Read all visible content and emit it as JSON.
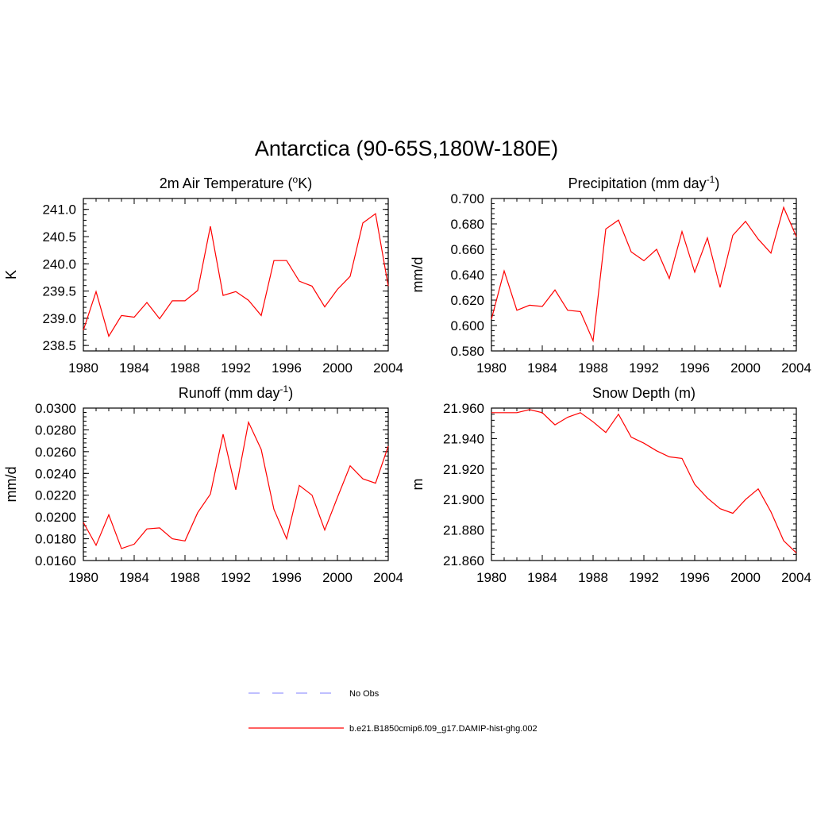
{
  "figure": {
    "title": "Antarctica (90-65S,180W-180E)"
  },
  "legend": {
    "entries": [
      {
        "label": "No Obs",
        "color": "#9999ff",
        "dash": true
      },
      {
        "label": "b.e21.B1850cmip6.f09_g17.DAMIP-hist-ghg.002",
        "color": "#ff0000",
        "dash": false
      }
    ]
  },
  "chart_data": [
    {
      "type": "line",
      "title": "2m Air Temperature (°K)",
      "title_main": "2m Air Temperature (",
      "title_sup": "o",
      "title_end": "K)",
      "ylabel": "K",
      "xlim": [
        1980,
        2004
      ],
      "ylim": [
        238.4,
        241.2
      ],
      "xticks": [
        1980,
        1984,
        1988,
        1992,
        1996,
        2000,
        2004
      ],
      "yticks": [
        238.5,
        239.0,
        239.5,
        240.0,
        240.5,
        241.0
      ],
      "ytick_labels": [
        "238.5",
        "239.0",
        "239.5",
        "240.0",
        "240.5",
        "241.0"
      ],
      "series": [
        {
          "color": "#ff0000",
          "x": [
            1980,
            1981,
            1982,
            1983,
            1984,
            1985,
            1986,
            1987,
            1988,
            1989,
            1990,
            1991,
            1992,
            1993,
            1994,
            1995,
            1996,
            1997,
            1998,
            1999,
            2000,
            2001,
            2002,
            2003,
            2004
          ],
          "y": [
            238.78,
            239.49,
            238.67,
            239.05,
            239.02,
            239.29,
            238.99,
            239.32,
            239.32,
            239.51,
            240.69,
            239.42,
            239.49,
            239.33,
            239.05,
            240.06,
            240.06,
            239.68,
            239.59,
            239.21,
            239.53,
            239.77,
            240.75,
            240.92,
            239.59
          ]
        }
      ]
    },
    {
      "type": "line",
      "title": "Precipitation (mm day-1)",
      "title_main": "Precipitation (mm day",
      "title_sup": "-1",
      "title_end": ")",
      "ylabel": "mm/d",
      "xlim": [
        1980,
        2004
      ],
      "ylim": [
        0.58,
        0.7
      ],
      "xticks": [
        1980,
        1984,
        1988,
        1992,
        1996,
        2000,
        2004
      ],
      "yticks": [
        0.58,
        0.6,
        0.62,
        0.64,
        0.66,
        0.68,
        0.7
      ],
      "ytick_labels": [
        "0.580",
        "0.600",
        "0.620",
        "0.640",
        "0.660",
        "0.680",
        "0.700"
      ],
      "series": [
        {
          "color": "#ff0000",
          "x": [
            1980,
            1981,
            1982,
            1983,
            1984,
            1985,
            1986,
            1987,
            1988,
            1989,
            1990,
            1991,
            1992,
            1993,
            1994,
            1995,
            1996,
            1997,
            1998,
            1999,
            2000,
            2001,
            2002,
            2003,
            2004
          ],
          "y": [
            0.605,
            0.643,
            0.612,
            0.616,
            0.615,
            0.628,
            0.612,
            0.611,
            0.588,
            0.676,
            0.683,
            0.658,
            0.651,
            0.66,
            0.637,
            0.674,
            0.642,
            0.669,
            0.63,
            0.671,
            0.682,
            0.668,
            0.657,
            0.693,
            0.67
          ]
        }
      ]
    },
    {
      "type": "line",
      "title": "Runoff (mm day-1)",
      "title_main": "Runoff (mm day",
      "title_sup": "-1",
      "title_end": ")",
      "ylabel": "mm/d",
      "xlim": [
        1980,
        2004
      ],
      "ylim": [
        0.016,
        0.03
      ],
      "xticks": [
        1980,
        1984,
        1988,
        1992,
        1996,
        2000,
        2004
      ],
      "yticks": [
        0.016,
        0.018,
        0.02,
        0.022,
        0.024,
        0.026,
        0.028,
        0.03
      ],
      "ytick_labels": [
        "0.0160",
        "0.0180",
        "0.0200",
        "0.0220",
        "0.0240",
        "0.0260",
        "0.0280",
        "0.0300"
      ],
      "series": [
        {
          "color": "#ff0000",
          "x": [
            1980,
            1981,
            1982,
            1983,
            1984,
            1985,
            1986,
            1987,
            1988,
            1989,
            1990,
            1991,
            1992,
            1993,
            1994,
            1995,
            1996,
            1997,
            1998,
            1999,
            2000,
            2001,
            2002,
            2003,
            2004
          ],
          "y": [
            0.0195,
            0.0174,
            0.0202,
            0.0171,
            0.0175,
            0.0189,
            0.019,
            0.018,
            0.0178,
            0.0204,
            0.0221,
            0.0276,
            0.0225,
            0.0287,
            0.0262,
            0.0207,
            0.018,
            0.0229,
            0.022,
            0.0188,
            0.0218,
            0.0247,
            0.0235,
            0.0231,
            0.0265
          ]
        }
      ]
    },
    {
      "type": "line",
      "title": "Snow Depth (m)",
      "title_main": "Snow Depth (m)",
      "title_sup": "",
      "title_end": "",
      "ylabel": "m",
      "xlim": [
        1980,
        2004
      ],
      "ylim": [
        21.86,
        21.96
      ],
      "xticks": [
        1980,
        1984,
        1988,
        1992,
        1996,
        2000,
        2004
      ],
      "yticks": [
        21.86,
        21.88,
        21.9,
        21.92,
        21.94,
        21.96
      ],
      "ytick_labels": [
        "21.860",
        "21.880",
        "21.900",
        "21.920",
        "21.940",
        "21.960"
      ],
      "series": [
        {
          "color": "#ff0000",
          "x": [
            1980,
            1981,
            1982,
            1983,
            1984,
            1985,
            1986,
            1987,
            1988,
            1989,
            1990,
            1991,
            1992,
            1993,
            1994,
            1995,
            1996,
            1997,
            1998,
            1999,
            2000,
            2001,
            2002,
            2003,
            2004
          ],
          "y": [
            21.957,
            21.957,
            21.957,
            21.959,
            21.957,
            21.949,
            21.954,
            21.957,
            21.951,
            21.944,
            21.956,
            21.941,
            21.937,
            21.932,
            21.928,
            21.927,
            21.91,
            21.901,
            21.894,
            21.891,
            21.9,
            21.907,
            21.892,
            21.873,
            21.865
          ]
        }
      ]
    }
  ]
}
